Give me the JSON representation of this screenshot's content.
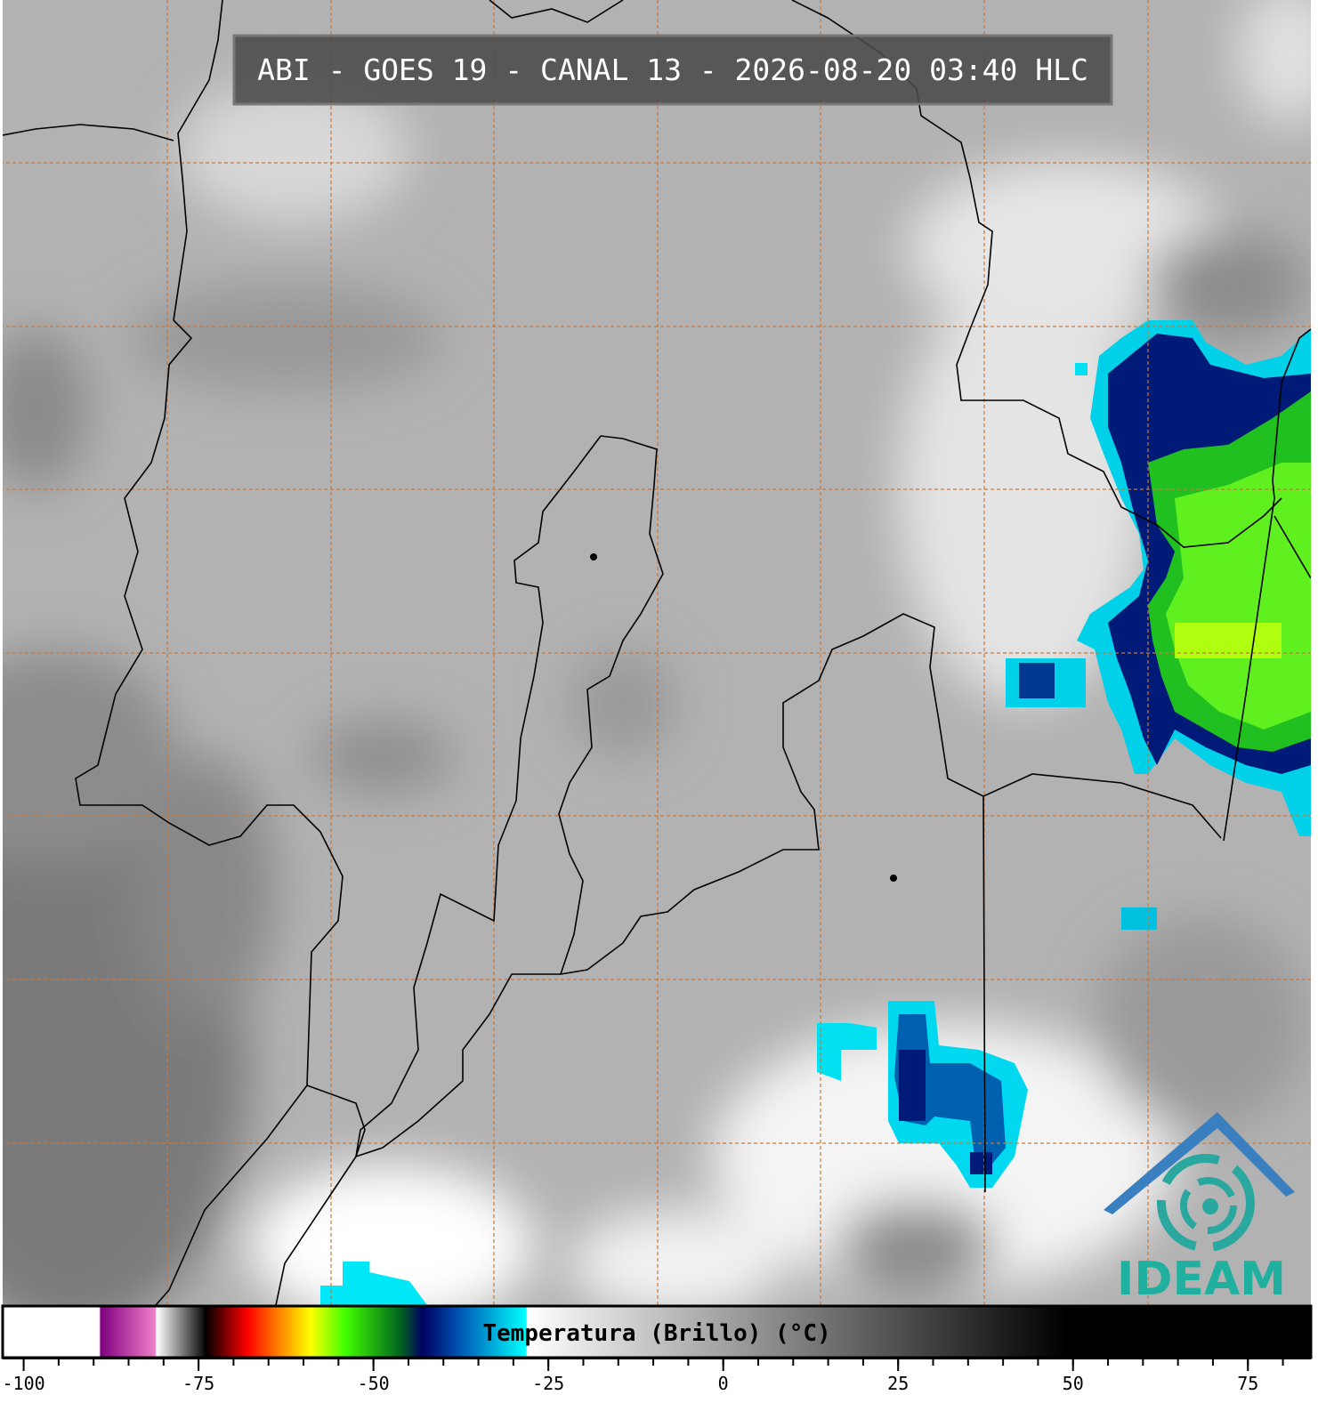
{
  "header": {
    "title": "ABI - GOES 19 - CANAL 13 - 2026-08-20 03:40 HLC"
  },
  "colorbar": {
    "label": "Temperatura (Brillo) (°C)",
    "lim": [
      -103,
      84
    ],
    "minor_step": 5,
    "ticks": [
      -100,
      -75,
      -50,
      -25,
      0,
      25,
      50,
      75
    ],
    "stops": [
      {
        "value": -103,
        "color": "#ffffff"
      },
      {
        "value": -89.2,
        "color": "#ffffff"
      },
      {
        "value": -89,
        "color": "#800080"
      },
      {
        "value": -81.2,
        "color": "#f080c8"
      },
      {
        "value": -81,
        "color": "#ffffff"
      },
      {
        "value": -74.3,
        "color": "#101010"
      },
      {
        "value": -74,
        "color": "#000000"
      },
      {
        "value": -68,
        "color": "#ff0000"
      },
      {
        "value": -63,
        "color": "#ff9000"
      },
      {
        "value": -59,
        "color": "#ffff00"
      },
      {
        "value": -54,
        "color": "#40ff00"
      },
      {
        "value": -46,
        "color": "#006020"
      },
      {
        "value": -43,
        "color": "#000060"
      },
      {
        "value": -38,
        "color": "#0050b0"
      },
      {
        "value": -28.2,
        "color": "#00ffff"
      },
      {
        "value": -28,
        "color": "#ffffff"
      },
      {
        "value": 49,
        "color": "#000000"
      },
      {
        "value": 84,
        "color": "#000000"
      }
    ]
  },
  "logo": {
    "text": "IDEAM"
  }
}
